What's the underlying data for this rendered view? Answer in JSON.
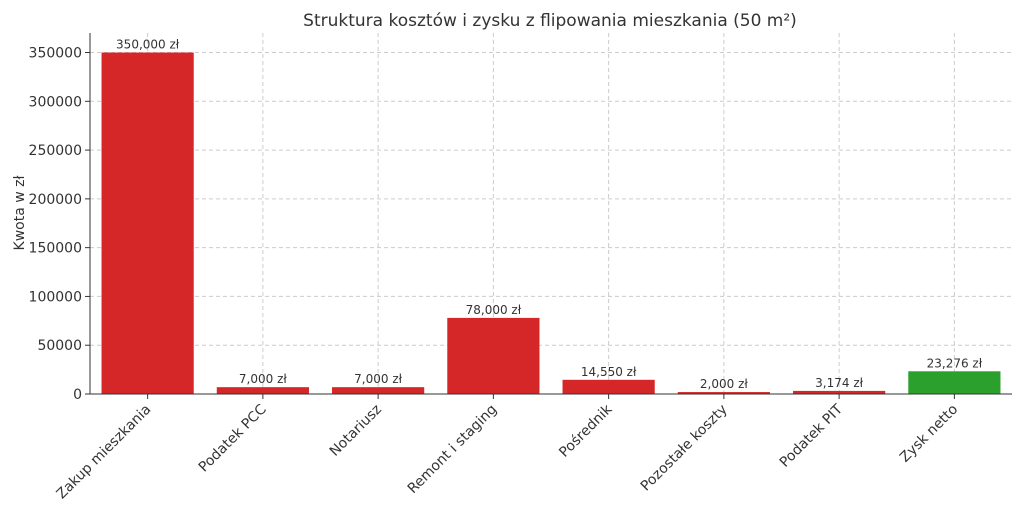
{
  "chart_data": {
    "type": "bar",
    "title": "Struktura kosztów i zysku z flipowania mieszkania (50 m²)",
    "xlabel": "",
    "ylabel": "Kwota w zł",
    "ylim": [
      0,
      370000
    ],
    "yticks": [
      0,
      50000,
      100000,
      150000,
      200000,
      250000,
      300000,
      350000
    ],
    "grid": true,
    "categories": [
      "Zakup mieszkania",
      "Podatek PCC",
      "Notariusz",
      "Remont i staging",
      "Pośrednik",
      "Pozostałe koszty",
      "Podatek PIT",
      "Zysk netto"
    ],
    "values": [
      350000,
      7000,
      7000,
      78000,
      14550,
      2000,
      3174,
      23276
    ],
    "data_labels": [
      "350,000 zł",
      "7,000 zł",
      "7,000 zł",
      "78,000 zł",
      "14,550 zł",
      "2,000 zł",
      "3,174 zł",
      "23,276 zł"
    ],
    "colors": [
      "#d62728",
      "#d62728",
      "#d62728",
      "#d62728",
      "#d62728",
      "#d62728",
      "#d62728",
      "#2ca02c"
    ]
  }
}
